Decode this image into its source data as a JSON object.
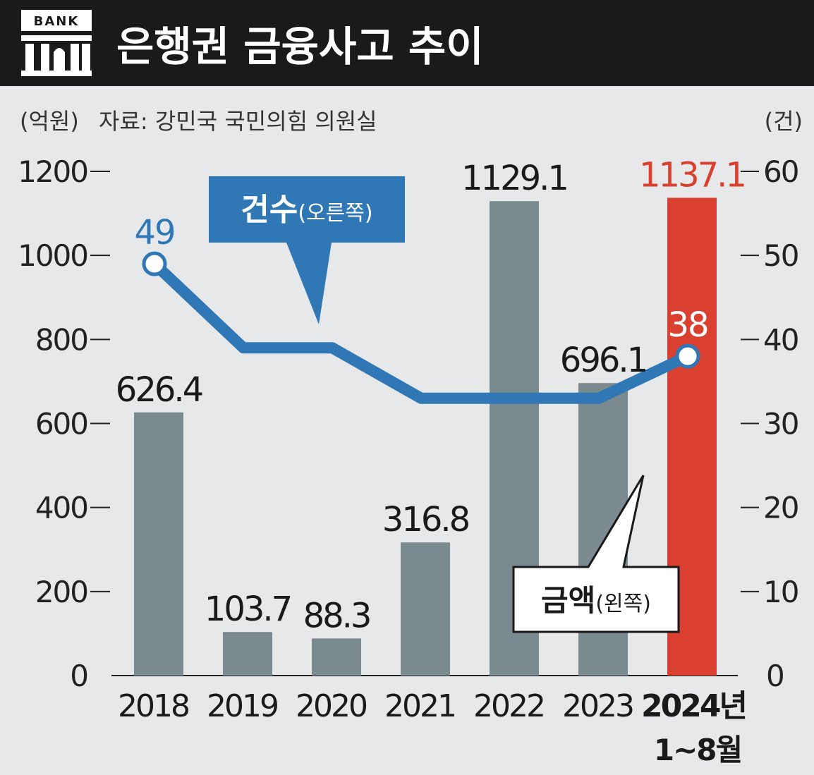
{
  "header": {
    "title": "은행권 금융사고 추이",
    "logo_text": "BANK"
  },
  "chart_data": {
    "type": "bar",
    "title": "은행권 금융사고 추이",
    "source": "자료: 강민국 국민의힘 의원실",
    "left_unit": "(억원)",
    "right_unit": "(건)",
    "categories": [
      "2018",
      "2019",
      "2020",
      "2021",
      "2022",
      "2023",
      "2024년"
    ],
    "category_sublabels": [
      "",
      "",
      "",
      "",
      "",
      "",
      "1~8월"
    ],
    "ylim_left": [
      0,
      1200
    ],
    "yticks_left": [
      "0",
      "200",
      "400",
      "600",
      "800",
      "1000",
      "1200"
    ],
    "ylim_right": [
      0,
      60
    ],
    "yticks_right": [
      "0",
      "10",
      "20",
      "30",
      "40",
      "50",
      "60"
    ],
    "series": [
      {
        "name": "금액(왼쪽)",
        "type": "bar",
        "axis": "left",
        "values": [
          626.4,
          103.7,
          88.3,
          316.8,
          1129.1,
          696.1,
          1137.1
        ],
        "value_labels": [
          "626.4",
          "103.7",
          "88.3",
          "316.8",
          "1129.1",
          "696.1",
          "1137.1"
        ]
      },
      {
        "name": "건수(오른쪽)",
        "type": "line",
        "axis": "right",
        "values": [
          49,
          39,
          39,
          33,
          33,
          33,
          38
        ],
        "value_labels": [
          "49",
          "",
          "",
          "",
          "",
          "",
          "38"
        ]
      }
    ],
    "legend": {
      "count_bold": "건수",
      "count_rest": "(오른쪽)",
      "amount_bold": "금액",
      "amount_rest": "(왼쪽)"
    },
    "colors": {
      "bar": "#7b8a8f",
      "bar_highlight": "#d9402f",
      "line": "#2f78b5",
      "count_label": "#2f78b5",
      "highlight_text": "#d9402f",
      "header_bg": "#1a1a1a",
      "background": "#e6e8ea"
    }
  }
}
